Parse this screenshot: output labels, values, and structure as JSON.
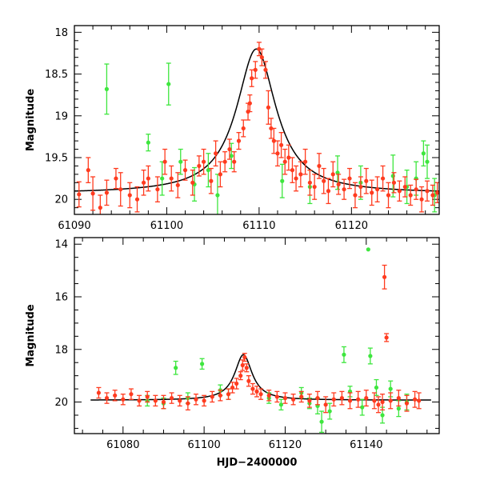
{
  "chart_data": [
    {
      "type": "scatter",
      "title": "",
      "xlabel": "",
      "ylabel": "Magnitude",
      "xlim": [
        61090,
        61129.5
      ],
      "ylim": [
        20.18,
        17.92
      ],
      "y_inverted": true,
      "x_ticks": [
        61090,
        61100,
        61110,
        61120
      ],
      "x_tick_labels": [
        "61090",
        "61100",
        "61110",
        "61120"
      ],
      "x_minor_step": 2,
      "y_ticks": [
        18,
        18.5,
        19,
        19.5,
        20
      ],
      "y_tick_labels": [
        "18",
        "18.5",
        "19",
        "19.5",
        "20"
      ],
      "y_minor_step": 0.1,
      "grid": false,
      "legend": "none",
      "model": {
        "base": 19.93,
        "amplitude": 1.73,
        "t0": 61109.7,
        "tE": 2.6
      },
      "series": [
        {
          "color": "#ff3b1f",
          "marker": "circle",
          "x": [
            61090.5,
            61091.5,
            61092.0,
            61092.8,
            61093.5,
            61094.5,
            61095.0,
            61096.0,
            61096.8,
            61097.5,
            61098.0,
            61099.0,
            61099.8,
            61100.5,
            61101.2,
            61102.0,
            61102.8,
            61103.5,
            61104.0,
            61104.8,
            61105.3,
            61105.8,
            61106.3,
            61106.8,
            61107.3,
            61107.8,
            61108.3,
            61108.8,
            61109.0,
            61109.2,
            61109.6,
            61110.0,
            61110.3,
            61110.7,
            61111.0,
            61111.3,
            61111.6,
            61112.0,
            61112.4,
            61112.8,
            61113.2,
            61113.6,
            61114.0,
            61114.5,
            61115.0,
            61115.5,
            61116.0,
            61116.5,
            61117.0,
            61117.5,
            61118.0,
            61118.6,
            61119.2,
            61119.8,
            61120.4,
            61121.0,
            61121.6,
            61122.2,
            61122.8,
            61123.4,
            61124.0,
            61124.6,
            61125.2,
            61125.8,
            61126.4,
            61127.0,
            61127.6,
            61128.2,
            61128.8,
            61129.3
          ],
          "y": [
            19.94,
            19.65,
            19.93,
            20.1,
            19.92,
            19.75,
            19.88,
            19.95,
            20.0,
            19.8,
            19.75,
            19.88,
            19.55,
            19.75,
            19.83,
            19.65,
            19.8,
            19.6,
            19.55,
            19.78,
            19.45,
            19.7,
            19.55,
            19.4,
            19.55,
            19.3,
            19.15,
            18.95,
            18.85,
            18.55,
            18.45,
            18.2,
            18.3,
            18.45,
            18.9,
            19.15,
            19.3,
            19.45,
            19.35,
            19.55,
            19.5,
            19.65,
            19.75,
            19.7,
            19.55,
            19.8,
            19.85,
            19.6,
            19.78,
            19.9,
            19.7,
            19.82,
            19.88,
            19.75,
            19.95,
            19.85,
            19.78,
            19.92,
            19.88,
            19.75,
            19.95,
            19.8,
            19.9,
            19.85,
            19.95,
            19.88,
            20.0,
            19.9,
            19.95,
            19.92
          ],
          "err": [
            0.15,
            0.15,
            0.2,
            0.15,
            0.15,
            0.12,
            0.2,
            0.15,
            0.15,
            0.15,
            0.15,
            0.15,
            0.15,
            0.15,
            0.15,
            0.12,
            0.15,
            0.12,
            0.15,
            0.15,
            0.15,
            0.15,
            0.12,
            0.12,
            0.12,
            0.1,
            0.1,
            0.1,
            0.1,
            0.1,
            0.1,
            0.08,
            0.1,
            0.1,
            0.2,
            0.12,
            0.15,
            0.15,
            0.15,
            0.15,
            0.15,
            0.15,
            0.15,
            0.15,
            0.15,
            0.15,
            0.15,
            0.15,
            0.15,
            0.15,
            0.15,
            0.12,
            0.12,
            0.12,
            0.15,
            0.12,
            0.15,
            0.15,
            0.15,
            0.15,
            0.15,
            0.12,
            0.12,
            0.12,
            0.12,
            0.12,
            0.15,
            0.12,
            0.12,
            0.12
          ]
        },
        {
          "color": "#3ee63e",
          "marker": "circle",
          "x": [
            61093.5,
            61100.2,
            61098.0,
            61101.5,
            61099.5,
            61103.0,
            61104.5,
            61105.5,
            61107.0,
            61112.5,
            61115.5,
            61118.5,
            61121.0,
            61124.5,
            61126.0,
            61127.0,
            61127.8,
            61128.2,
            61129.0
          ],
          "y": [
            18.68,
            18.62,
            19.32,
            19.55,
            19.75,
            19.82,
            19.65,
            19.95,
            19.48,
            19.78,
            19.85,
            19.68,
            19.8,
            19.72,
            19.85,
            19.75,
            19.45,
            19.55,
            19.95
          ],
          "err": [
            0.3,
            0.25,
            0.1,
            0.15,
            0.2,
            0.2,
            0.2,
            0.25,
            0.15,
            0.2,
            0.2,
            0.2,
            0.2,
            0.25,
            0.2,
            0.2,
            0.15,
            0.2,
            0.2
          ]
        }
      ]
    },
    {
      "type": "scatter",
      "title": "",
      "xlabel": "HJD−2400000",
      "ylabel": "Magnitude",
      "xlim": [
        61068,
        61158
      ],
      "ylim": [
        21.2,
        13.75
      ],
      "y_inverted": true,
      "x_ticks": [
        61080,
        61100,
        61120,
        61140
      ],
      "x_tick_labels": [
        "61080",
        "61100",
        "61120",
        "61140"
      ],
      "x_minor_step": 5,
      "y_ticks": [
        14,
        16,
        18,
        20
      ],
      "y_tick_labels": [
        "14",
        "16",
        "18",
        "20"
      ],
      "y_minor_step": 0.5,
      "grid": false,
      "legend": "none",
      "model": {
        "base": 19.93,
        "amplitude": 1.73,
        "t0": 61109.7,
        "tE": 2.6,
        "x_range": [
          61072,
          61156
        ]
      },
      "series": [
        {
          "color": "#ff3b1f",
          "marker": "circle",
          "x": [
            61074,
            61076,
            61078,
            61080,
            61082,
            61084,
            61086,
            61088,
            61090,
            61092,
            61094,
            61096,
            61098,
            61100,
            61102,
            61104,
            61106,
            61107,
            61108,
            61109,
            61109.5,
            61110,
            61110.5,
            61111,
            61112,
            61113,
            61114,
            61116,
            61118,
            61120,
            61122,
            61124,
            61126,
            61128,
            61130,
            61132,
            61134,
            61136,
            61138,
            61140,
            61142,
            61143,
            61144,
            61144.5,
            61145,
            61146,
            61148,
            61150,
            61152,
            61153
          ],
          "y": [
            19.65,
            19.85,
            19.75,
            19.9,
            19.7,
            19.95,
            19.8,
            19.95,
            20.0,
            19.85,
            19.95,
            20.05,
            19.9,
            19.95,
            19.8,
            19.75,
            19.7,
            19.45,
            19.3,
            19.0,
            18.6,
            18.3,
            18.7,
            19.2,
            19.5,
            19.6,
            19.7,
            19.75,
            19.8,
            19.85,
            19.9,
            19.8,
            19.95,
            19.85,
            20.1,
            19.9,
            19.85,
            19.95,
            19.9,
            19.85,
            19.95,
            20.1,
            20.0,
            15.25,
            17.55,
            19.95,
            19.85,
            20.05,
            19.9,
            19.95
          ],
          "err": [
            0.2,
            0.2,
            0.2,
            0.2,
            0.2,
            0.2,
            0.2,
            0.2,
            0.25,
            0.2,
            0.2,
            0.25,
            0.2,
            0.2,
            0.2,
            0.2,
            0.2,
            0.2,
            0.2,
            0.15,
            0.2,
            0.15,
            0.15,
            0.2,
            0.2,
            0.2,
            0.2,
            0.2,
            0.2,
            0.2,
            0.2,
            0.2,
            0.25,
            0.25,
            0.3,
            0.25,
            0.25,
            0.3,
            0.3,
            0.3,
            0.3,
            0.3,
            0.3,
            0.45,
            0.15,
            0.3,
            0.3,
            0.3,
            0.3,
            0.3
          ]
        },
        {
          "color": "#3ee63e",
          "marker": "circle",
          "x": [
            61093,
            61099.5,
            61086,
            61090,
            61096,
            61104,
            61106,
            61116,
            61119,
            61124,
            61126,
            61128,
            61129,
            61131,
            61134.5,
            61136,
            61139,
            61140.5,
            61141,
            61142.5,
            61144,
            61146,
            61148,
            61150
          ],
          "y": [
            18.7,
            18.55,
            19.95,
            20.05,
            19.85,
            19.55,
            19.7,
            19.85,
            20.1,
            19.65,
            20.05,
            20.15,
            20.75,
            20.35,
            18.2,
            19.6,
            20.2,
            14.2,
            18.25,
            19.45,
            20.5,
            19.5,
            20.25,
            20.0
          ],
          "err": [
            0.25,
            0.2,
            0.2,
            0.2,
            0.2,
            0.2,
            0.2,
            0.2,
            0.2,
            0.2,
            0.2,
            0.3,
            0.4,
            0.3,
            0.3,
            0.2,
            0.3,
            0.0,
            0.3,
            0.3,
            0.3,
            0.3,
            0.3,
            0.3
          ]
        }
      ]
    }
  ]
}
